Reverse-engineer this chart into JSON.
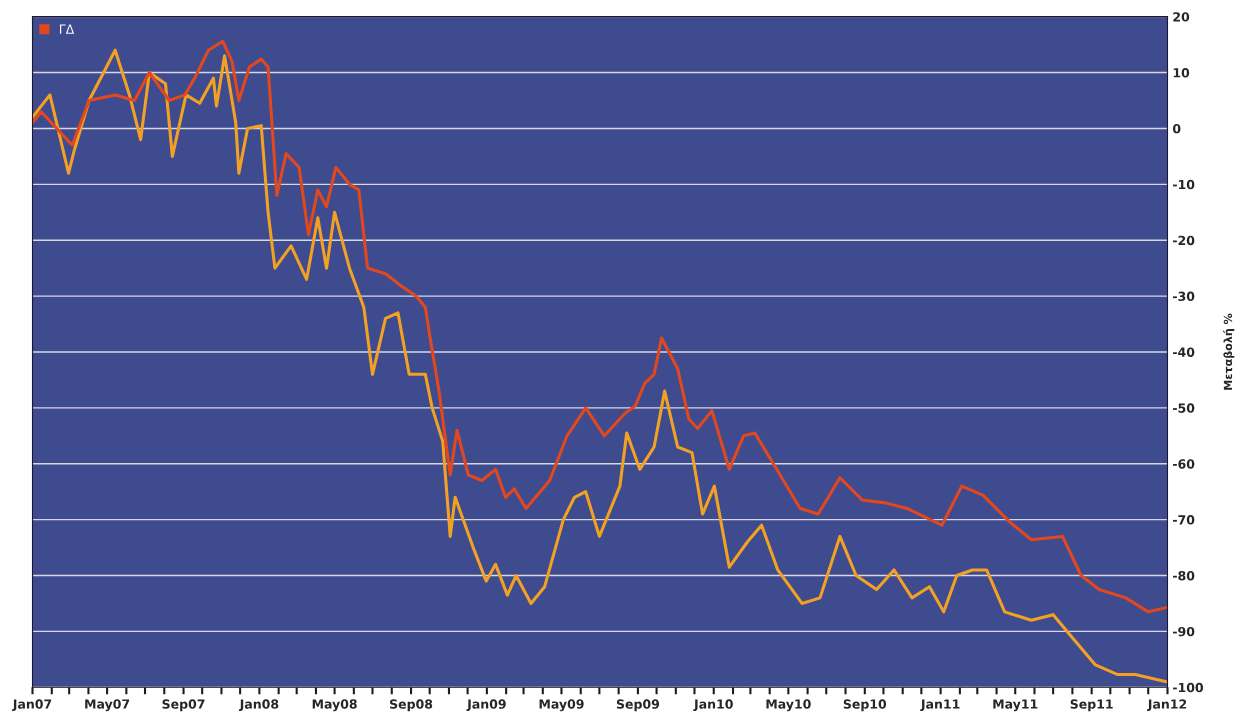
{
  "chart_data": {
    "type": "line",
    "ylabel": "Μεταβολή %",
    "series": [
      {
        "color": "#f2a124",
        "x": [
          "2007-01-01",
          "2007-01-29",
          "2007-02-28",
          "2007-03-09",
          "2007-04-02",
          "2007-05-14",
          "2007-06-06",
          "2007-06-24",
          "2007-07-08",
          "2007-08-03",
          "2007-08-14",
          "2007-09-05",
          "2007-09-27",
          "2007-10-19",
          "2007-10-24",
          "2007-11-06",
          "2007-11-24",
          "2007-11-29",
          "2007-12-13",
          "2008-01-04",
          "2008-01-15",
          "2008-01-26",
          "2008-02-21",
          "2008-03-17",
          "2008-04-04",
          "2008-04-18",
          "2008-05-01",
          "2008-05-25",
          "2008-06-17",
          "2008-07-01",
          "2008-07-22",
          "2008-08-11",
          "2008-08-29",
          "2008-09-24",
          "2008-10-05",
          "2008-10-22",
          "2008-11-03",
          "2008-11-11",
          "2008-12-10",
          "2008-12-31",
          "2009-01-15",
          "2009-02-03",
          "2009-02-17",
          "2009-03-13",
          "2009-04-04",
          "2009-05-04",
          "2009-05-22",
          "2009-06-09",
          "2009-07-01",
          "2009-08-03",
          "2009-08-14",
          "2009-09-04",
          "2009-09-27",
          "2009-10-14",
          "2009-11-04",
          "2009-11-27",
          "2009-12-14",
          "2010-01-02",
          "2010-01-26",
          "2010-02-24",
          "2010-03-19",
          "2010-04-14",
          "2010-05-23",
          "2010-06-21",
          "2010-07-23",
          "2010-08-18",
          "2010-09-20",
          "2010-10-18",
          "2010-11-16",
          "2010-12-14",
          "2011-01-06",
          "2011-01-27",
          "2011-02-21",
          "2011-03-16",
          "2011-04-14",
          "2011-05-27",
          "2011-07-01",
          "2011-07-31",
          "2011-09-07",
          "2011-10-12",
          "2011-11-10",
          "2011-12-30"
        ],
        "values": [
          2,
          6,
          -8,
          -4,
          5,
          14,
          6,
          -2,
          10,
          8,
          -5,
          6,
          4.5,
          9,
          4,
          13,
          1,
          -8,
          0,
          0.5,
          -15,
          -25,
          -21,
          -27,
          -16,
          -25,
          -15,
          -25,
          -32,
          -44,
          -34,
          -33,
          -44,
          -44,
          -50,
          -56,
          -73,
          -66,
          -75,
          -81,
          -78,
          -83.5,
          -80,
          -85,
          -82,
          -70,
          -66,
          -65,
          -73,
          -64,
          -54.5,
          -61,
          -57,
          -47,
          -57,
          -58,
          -69,
          -64,
          -78.5,
          -74,
          -71,
          -79,
          -85,
          -84,
          -73,
          -80,
          -82.5,
          -79,
          -84,
          -82,
          -86.5,
          -80,
          -79,
          -79,
          -86.5,
          -88,
          -87,
          -91,
          -96,
          -97.7,
          -97.7,
          -99
        ]
      },
      {
        "name": "ΓΔ",
        "color": "#e2481f",
        "x": [
          "2007-01-01",
          "2007-01-15",
          "2007-03-06",
          "2007-04-02",
          "2007-05-14",
          "2007-06-14",
          "2007-07-08",
          "2007-08-09",
          "2007-09-03",
          "2007-09-19",
          "2007-10-11",
          "2007-11-03",
          "2007-11-18",
          "2007-11-29",
          "2007-12-16",
          "2008-01-04",
          "2008-01-15",
          "2008-01-23",
          "2008-01-29",
          "2008-02-13",
          "2008-03-05",
          "2008-03-20",
          "2008-04-04",
          "2008-04-18",
          "2008-05-03",
          "2008-05-25",
          "2008-06-09",
          "2008-06-23",
          "2008-07-22",
          "2008-08-14",
          "2008-09-09",
          "2008-09-24",
          "2008-10-01",
          "2008-10-16",
          "2008-11-03",
          "2008-11-14",
          "2008-12-02",
          "2008-12-24",
          "2009-01-15",
          "2009-01-31",
          "2009-02-14",
          "2009-03-05",
          "2009-04-12",
          "2009-05-10",
          "2009-06-09",
          "2009-07-09",
          "2009-08-11",
          "2009-08-28",
          "2009-09-12",
          "2009-09-27",
          "2009-10-09",
          "2009-11-04",
          "2009-11-22",
          "2009-12-06",
          "2009-12-29",
          "2010-01-26",
          "2010-02-18",
          "2010-03-08",
          "2010-04-07",
          "2010-05-20",
          "2010-06-18",
          "2010-07-23",
          "2010-08-28",
          "2010-10-04",
          "2010-11-08",
          "2011-01-03",
          "2011-02-04",
          "2011-03-10",
          "2011-04-22",
          "2011-05-27",
          "2011-07-16",
          "2011-08-15",
          "2011-09-13",
          "2011-10-26",
          "2011-12-01",
          "2012-01-01"
        ],
        "values": [
          1,
          3,
          -3,
          5,
          6,
          5,
          10,
          5,
          6,
          9,
          14,
          15.6,
          12,
          5,
          11,
          12.4,
          11,
          -2,
          -12,
          -4.5,
          -7,
          -19,
          -11,
          -14,
          -7,
          -10,
          -11,
          -25,
          -26,
          -28,
          -30,
          -32,
          -37,
          -47,
          -62,
          -54,
          -62,
          -63,
          -61,
          -66,
          -64.5,
          -68,
          -63,
          -55,
          -50,
          -55,
          -51,
          -49.6,
          -45.6,
          -44,
          -37.5,
          -43,
          -52,
          -53.7,
          -50.5,
          -61,
          -55,
          -54.5,
          -60,
          -68,
          -69,
          -62.5,
          -66.5,
          -67,
          -68,
          -71,
          -64,
          -65.6,
          -70.4,
          -73.6,
          -73,
          -80,
          -82.5,
          -84,
          -86.5,
          -85.7
        ]
      }
    ],
    "xlim": [
      "2007-01-01",
      "2012-01-01"
    ],
    "xticks": [
      {
        "value": "2007-01-01",
        "label": "Jan07"
      },
      {
        "value": "2007-02-01",
        "label": null
      },
      {
        "value": "2007-03-01",
        "label": null
      },
      {
        "value": "2007-04-01",
        "label": null
      },
      {
        "value": "2007-05-01",
        "label": "May07"
      },
      {
        "value": "2007-06-01",
        "label": null
      },
      {
        "value": "2007-07-01",
        "label": null
      },
      {
        "value": "2007-08-01",
        "label": null
      },
      {
        "value": "2007-09-01",
        "label": "Sep07"
      },
      {
        "value": "2007-10-01",
        "label": null
      },
      {
        "value": "2007-11-01",
        "label": null
      },
      {
        "value": "2007-12-01",
        "label": null
      },
      {
        "value": "2008-01-01",
        "label": "Jan08"
      },
      {
        "value": "2008-02-01",
        "label": null
      },
      {
        "value": "2008-03-01",
        "label": null
      },
      {
        "value": "2008-04-01",
        "label": null
      },
      {
        "value": "2008-05-01",
        "label": "May08"
      },
      {
        "value": "2008-06-01",
        "label": null
      },
      {
        "value": "2008-07-01",
        "label": null
      },
      {
        "value": "2008-08-01",
        "label": null
      },
      {
        "value": "2008-09-01",
        "label": "Sep08"
      },
      {
        "value": "2008-10-01",
        "label": null
      },
      {
        "value": "2008-11-01",
        "label": null
      },
      {
        "value": "2008-12-01",
        "label": null
      },
      {
        "value": "2009-01-01",
        "label": "Jan09"
      },
      {
        "value": "2009-02-01",
        "label": null
      },
      {
        "value": "2009-03-01",
        "label": null
      },
      {
        "value": "2009-04-01",
        "label": null
      },
      {
        "value": "2009-05-01",
        "label": "May09"
      },
      {
        "value": "2009-06-01",
        "label": null
      },
      {
        "value": "2009-07-01",
        "label": null
      },
      {
        "value": "2009-08-01",
        "label": null
      },
      {
        "value": "2009-09-01",
        "label": "Sep09"
      },
      {
        "value": "2009-10-01",
        "label": null
      },
      {
        "value": "2009-11-01",
        "label": null
      },
      {
        "value": "2009-12-01",
        "label": null
      },
      {
        "value": "2010-01-01",
        "label": "Jan10"
      },
      {
        "value": "2010-02-01",
        "label": null
      },
      {
        "value": "2010-03-01",
        "label": null
      },
      {
        "value": "2010-04-01",
        "label": null
      },
      {
        "value": "2010-05-01",
        "label": "May10"
      },
      {
        "value": "2010-06-01",
        "label": null
      },
      {
        "value": "2010-07-01",
        "label": null
      },
      {
        "value": "2010-08-01",
        "label": null
      },
      {
        "value": "2010-09-01",
        "label": "Sep10"
      },
      {
        "value": "2010-10-01",
        "label": null
      },
      {
        "value": "2010-11-01",
        "label": null
      },
      {
        "value": "2010-12-01",
        "label": null
      },
      {
        "value": "2011-01-01",
        "label": "Jan11"
      },
      {
        "value": "2011-02-01",
        "label": null
      },
      {
        "value": "2011-03-01",
        "label": null
      },
      {
        "value": "2011-04-01",
        "label": null
      },
      {
        "value": "2011-05-01",
        "label": "May11"
      },
      {
        "value": "2011-06-01",
        "label": null
      },
      {
        "value": "2011-07-01",
        "label": null
      },
      {
        "value": "2011-08-01",
        "label": null
      },
      {
        "value": "2011-09-01",
        "label": "Sep11"
      },
      {
        "value": "2011-10-01",
        "label": null
      },
      {
        "value": "2011-11-01",
        "label": null
      },
      {
        "value": "2011-12-01",
        "label": null
      },
      {
        "value": "2012-01-01",
        "label": "Jan12"
      }
    ],
    "ylim": [
      -100,
      20
    ],
    "yticks": [
      20,
      10,
      0,
      -10,
      -20,
      -30,
      -40,
      -50,
      -60,
      -70,
      -80,
      -90,
      -100
    ],
    "grid": "y",
    "legend": "top left"
  }
}
